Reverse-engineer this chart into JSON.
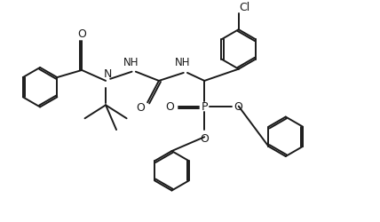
{
  "bg_color": "#ffffff",
  "line_color": "#1a1a1a",
  "line_width": 1.4,
  "fig_width": 4.28,
  "fig_height": 2.51,
  "dpi": 100,
  "xlim": [
    0,
    10
  ],
  "ylim": [
    0,
    5.87
  ]
}
